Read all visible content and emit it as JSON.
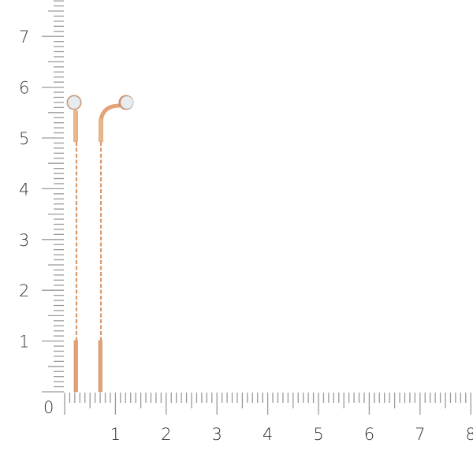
{
  "ruler": {
    "unit_step": 1,
    "minor_divisions": 10,
    "origin_label": "0",
    "vertical_labels": [
      "1",
      "2",
      "3",
      "4",
      "5",
      "6",
      "7"
    ],
    "horizontal_labels": [
      "1",
      "2",
      "3",
      "4",
      "5",
      "6",
      "7",
      "8"
    ],
    "tick_color": "#9a9a9a"
  },
  "product": {
    "metal_color": "#e3a277",
    "stone_color": "#e8ecef",
    "items": [
      "left-earring",
      "right-earring"
    ]
  }
}
